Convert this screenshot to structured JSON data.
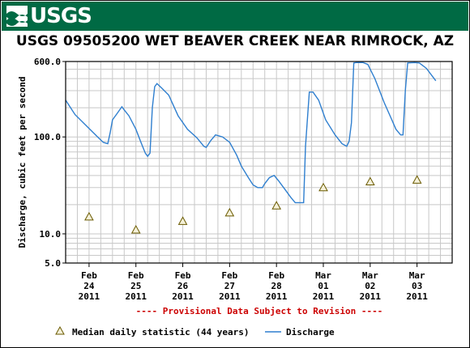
{
  "banner": {
    "logo_text": "USGS",
    "color": "#006a44"
  },
  "chart_data": {
    "type": "line",
    "title": "USGS 09505200 WET BEAVER CREEK NEAR RIMROCK, AZ",
    "ylabel": "Discharge, cubic feet per second",
    "y_scale": "log",
    "ylim": [
      5,
      600
    ],
    "y_tick_labels": [
      {
        "value": 600,
        "label": "600.0"
      },
      {
        "value": 100,
        "label": "100.0"
      },
      {
        "value": 10,
        "label": "10.0"
      },
      {
        "value": 5,
        "label": "5.0"
      }
    ],
    "xlim": [
      0,
      8.25
    ],
    "x_ticks": [
      {
        "pos": 0.5,
        "month": "Feb",
        "day": "24",
        "year": "2011"
      },
      {
        "pos": 1.5,
        "month": "Feb",
        "day": "25",
        "year": "2011"
      },
      {
        "pos": 2.5,
        "month": "Feb",
        "day": "26",
        "year": "2011"
      },
      {
        "pos": 3.5,
        "month": "Feb",
        "day": "27",
        "year": "2011"
      },
      {
        "pos": 4.5,
        "month": "Feb",
        "day": "28",
        "year": "2011"
      },
      {
        "pos": 5.5,
        "month": "Mar",
        "day": "01",
        "year": "2011"
      },
      {
        "pos": 6.5,
        "month": "Mar",
        "day": "02",
        "year": "2011"
      },
      {
        "pos": 7.5,
        "month": "Mar",
        "day": "03",
        "year": "2011"
      }
    ],
    "grid": true,
    "provisional_note": "---- Provisional Data Subject to Revision ----",
    "series": [
      {
        "name": "Discharge",
        "kind": "line",
        "color": "#2f7fcf",
        "points": [
          [
            0.0,
            240
          ],
          [
            0.2,
            170
          ],
          [
            0.5,
            122
          ],
          [
            0.7,
            98
          ],
          [
            0.8,
            88
          ],
          [
            0.9,
            85
          ],
          [
            0.95,
            110
          ],
          [
            1.0,
            150
          ],
          [
            1.1,
            175
          ],
          [
            1.2,
            205
          ],
          [
            1.25,
            190
          ],
          [
            1.35,
            165
          ],
          [
            1.5,
            120
          ],
          [
            1.6,
            90
          ],
          [
            1.7,
            68
          ],
          [
            1.75,
            63
          ],
          [
            1.8,
            68
          ],
          [
            1.85,
            200
          ],
          [
            1.9,
            330
          ],
          [
            1.95,
            355
          ],
          [
            2.05,
            320
          ],
          [
            2.2,
            270
          ],
          [
            2.4,
            165
          ],
          [
            2.6,
            120
          ],
          [
            2.8,
            98
          ],
          [
            2.95,
            80
          ],
          [
            3.0,
            78
          ],
          [
            3.1,
            92
          ],
          [
            3.2,
            105
          ],
          [
            3.35,
            100
          ],
          [
            3.5,
            88
          ],
          [
            3.65,
            65
          ],
          [
            3.75,
            50
          ],
          [
            3.9,
            38
          ],
          [
            4.0,
            32
          ],
          [
            4.1,
            30
          ],
          [
            4.2,
            30
          ],
          [
            4.25,
            33
          ],
          [
            4.35,
            38
          ],
          [
            4.45,
            40
          ],
          [
            4.55,
            35
          ],
          [
            4.7,
            28
          ],
          [
            4.8,
            24
          ],
          [
            4.9,
            21
          ],
          [
            5.0,
            21
          ],
          [
            5.08,
            21
          ],
          [
            5.12,
            80
          ],
          [
            5.2,
            290
          ],
          [
            5.28,
            290
          ],
          [
            5.4,
            240
          ],
          [
            5.55,
            150
          ],
          [
            5.75,
            105
          ],
          [
            5.9,
            85
          ],
          [
            6.0,
            80
          ],
          [
            6.05,
            90
          ],
          [
            6.1,
            140
          ],
          [
            6.15,
            580
          ],
          [
            6.2,
            585
          ],
          [
            6.35,
            585
          ],
          [
            6.45,
            560
          ],
          [
            6.6,
            400
          ],
          [
            6.8,
            225
          ],
          [
            6.95,
            155
          ],
          [
            7.05,
            120
          ],
          [
            7.15,
            105
          ],
          [
            7.2,
            105
          ],
          [
            7.25,
            300
          ],
          [
            7.3,
            580
          ],
          [
            7.45,
            585
          ],
          [
            7.55,
            580
          ],
          [
            7.7,
            510
          ],
          [
            7.9,
            380
          ]
        ]
      },
      {
        "name": "Median daily statistic (44 years)",
        "kind": "marker",
        "marker": "triangle",
        "color": "#c8a000",
        "x": [
          0.5,
          1.5,
          2.5,
          3.5,
          4.5,
          5.5,
          6.5,
          7.5
        ],
        "values": [
          15.0,
          11.0,
          13.5,
          16.5,
          19.5,
          30.0,
          34.5,
          36.0
        ]
      }
    ],
    "legend": {
      "placement": "bottom",
      "entries": [
        {
          "label": "Median daily statistic (44 years)",
          "kind": "triangle"
        },
        {
          "label": "Discharge",
          "kind": "line"
        }
      ]
    }
  },
  "colors": {
    "background": "#ffffff",
    "grid": "#c8c8c8",
    "axis": "#000000",
    "note": "#cc0000",
    "tick_text": "#000000"
  }
}
